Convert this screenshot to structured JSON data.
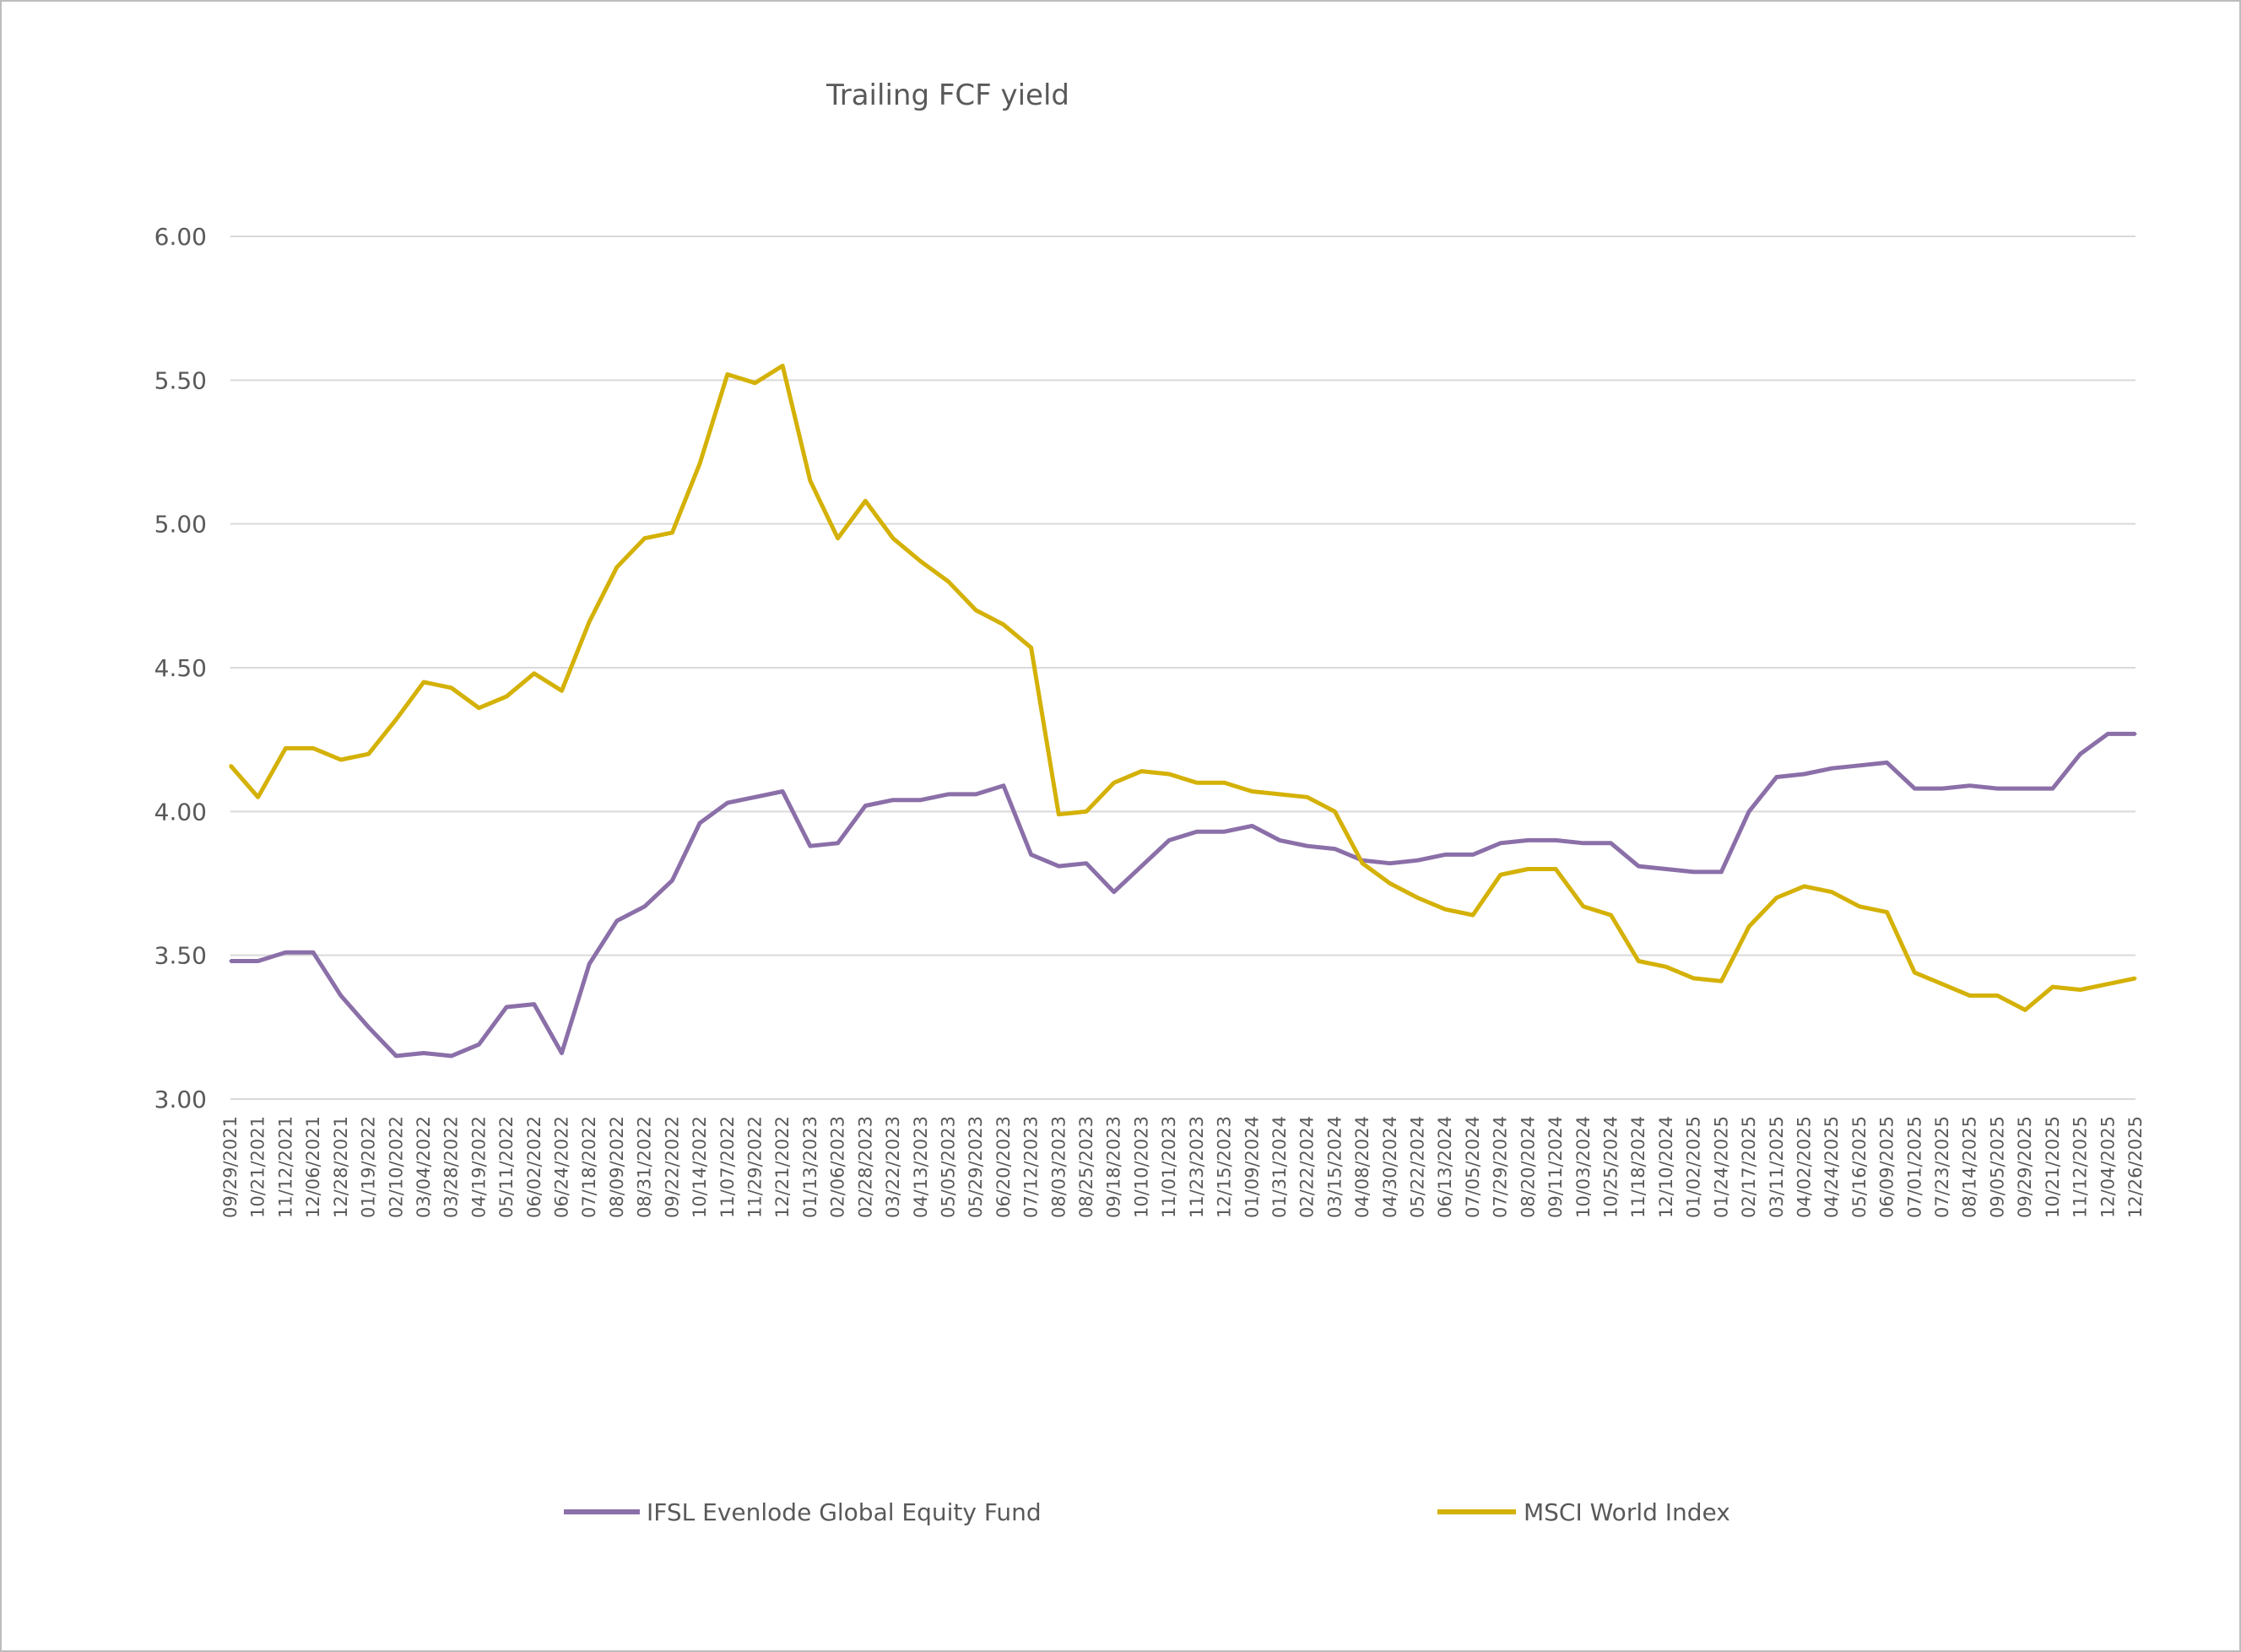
{
  "chart_data": {
    "type": "line",
    "title": "Trailing FCF yield",
    "xlabel": "",
    "ylabel": "",
    "ylim": [
      3.0,
      6.0
    ],
    "yticks": [
      "3.00",
      "3.50",
      "4.00",
      "4.50",
      "5.00",
      "5.50",
      "6.00"
    ],
    "grid": true,
    "legend": "bottom",
    "categories": [
      "09/29/2021",
      "10/21/2021",
      "11/12/2021",
      "12/06/2021",
      "12/28/2021",
      "01/19/2022",
      "02/10/2022",
      "03/04/2022",
      "03/28/2022",
      "04/19/2022",
      "05/11/2022",
      "06/02/2022",
      "06/24/2022",
      "07/18/2022",
      "08/09/2022",
      "08/31/2022",
      "09/22/2022",
      "10/14/2022",
      "11/07/2022",
      "11/29/2022",
      "12/21/2022",
      "01/13/2023",
      "02/06/2023",
      "02/28/2023",
      "03/22/2023",
      "04/13/2023",
      "05/05/2023",
      "05/29/2023",
      "06/20/2023",
      "07/12/2023",
      "08/03/2023",
      "08/25/2023",
      "09/18/2023",
      "10/10/2023",
      "11/01/2023",
      "11/23/2023",
      "12/15/2023",
      "01/09/2024",
      "01/31/2024",
      "02/22/2024",
      "03/15/2024",
      "04/08/2024",
      "04/30/2024",
      "05/22/2024",
      "06/13/2024",
      "07/05/2024",
      "07/29/2024",
      "08/20/2024",
      "09/11/2024",
      "10/03/2024",
      "10/25/2024",
      "11/18/2024",
      "12/10/2024",
      "01/02/2025",
      "01/24/2025",
      "02/17/2025",
      "03/11/2025",
      "04/02/2025",
      "04/24/2025",
      "05/16/2025",
      "06/09/2025",
      "07/01/2025",
      "07/23/2025",
      "08/14/2025",
      "09/05/2025",
      "09/29/2025",
      "10/21/2025",
      "11/12/2025",
      "12/04/2025",
      "12/26/2025"
    ],
    "series": [
      {
        "name": "IFSL Evenlode Global Equity Fund",
        "color": "#8B6FA8",
        "values": [
          3.48,
          3.48,
          3.51,
          3.51,
          3.36,
          3.25,
          3.15,
          3.16,
          3.15,
          3.19,
          3.32,
          3.33,
          3.16,
          3.47,
          3.62,
          3.67,
          3.76,
          3.96,
          4.03,
          4.05,
          4.07,
          3.88,
          3.89,
          4.02,
          4.04,
          4.04,
          4.06,
          4.06,
          4.09,
          3.85,
          3.81,
          3.82,
          3.72,
          3.81,
          3.9,
          3.93,
          3.93,
          3.95,
          3.9,
          3.88,
          3.87,
          3.83,
          3.82,
          3.83,
          3.85,
          3.85,
          3.89,
          3.9,
          3.9,
          3.89,
          3.89,
          3.81,
          3.8,
          3.79,
          3.79,
          4.0,
          4.12,
          4.13,
          4.15,
          4.16,
          4.17,
          4.08,
          4.08,
          4.09,
          4.08,
          4.08,
          4.08,
          4.2,
          4.27,
          4.27
        ]
      },
      {
        "name": "MSCI World Index",
        "color": "#D4B106",
        "values": [
          4.16,
          4.05,
          4.22,
          4.22,
          4.18,
          4.2,
          4.32,
          4.45,
          4.43,
          4.36,
          4.4,
          4.48,
          4.42,
          4.66,
          4.85,
          4.95,
          4.97,
          5.21,
          5.52,
          5.49,
          5.55,
          5.15,
          4.95,
          5.08,
          4.95,
          4.87,
          4.8,
          4.7,
          4.65,
          4.57,
          3.99,
          4.0,
          4.1,
          4.14,
          4.13,
          4.1,
          4.1,
          4.07,
          4.06,
          4.05,
          4.0,
          3.82,
          3.75,
          3.7,
          3.66,
          3.64,
          3.78,
          3.8,
          3.8,
          3.67,
          3.64,
          3.48,
          3.46,
          3.42,
          3.41,
          3.6,
          3.7,
          3.74,
          3.72,
          3.67,
          3.65,
          3.44,
          3.4,
          3.36,
          3.36,
          3.31,
          3.39,
          3.38,
          3.4,
          3.42
        ]
      }
    ]
  }
}
